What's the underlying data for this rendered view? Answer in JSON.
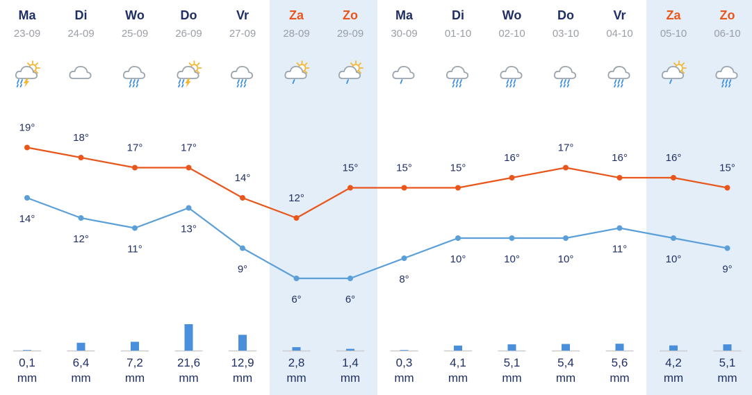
{
  "forecast": {
    "days": [
      {
        "day": "Ma",
        "date": "23-09",
        "weekend": false,
        "icon": "sun-cloud-thunderstorm-icon",
        "high": "19°",
        "low": "14°",
        "precip": "0,1",
        "unit": "mm"
      },
      {
        "day": "Di",
        "date": "24-09",
        "weekend": false,
        "icon": "partly-cloudy-icon",
        "high": "18°",
        "low": "12°",
        "precip": "6,4",
        "unit": "mm"
      },
      {
        "day": "Wo",
        "date": "25-09",
        "weekend": false,
        "icon": "cloud-rain-icon",
        "high": "17°",
        "low": "11°",
        "precip": "7,2",
        "unit": "mm"
      },
      {
        "day": "Do",
        "date": "26-09",
        "weekend": false,
        "icon": "sun-cloud-thunderstorm-icon",
        "high": "17°",
        "low": "13°",
        "precip": "21,6",
        "unit": "mm"
      },
      {
        "day": "Vr",
        "date": "27-09",
        "weekend": false,
        "icon": "cloud-rain-icon",
        "high": "14°",
        "low": "9°",
        "precip": "12,9",
        "unit": "mm"
      },
      {
        "day": "Za",
        "date": "28-09",
        "weekend": true,
        "icon": "sun-cloud-drizzle-icon",
        "high": "12°",
        "low": "6°",
        "precip": "2,8",
        "unit": "mm"
      },
      {
        "day": "Zo",
        "date": "29-09",
        "weekend": true,
        "icon": "sun-cloud-drizzle-icon",
        "high": "15°",
        "low": "6°",
        "precip": "1,4",
        "unit": "mm"
      },
      {
        "day": "Ma",
        "date": "30-09",
        "weekend": false,
        "icon": "cloud-drizzle-icon",
        "high": "15°",
        "low": "8°",
        "precip": "0,3",
        "unit": "mm"
      },
      {
        "day": "Di",
        "date": "01-10",
        "weekend": false,
        "icon": "cloud-rain-icon",
        "high": "15°",
        "low": "10°",
        "precip": "4,1",
        "unit": "mm"
      },
      {
        "day": "Wo",
        "date": "02-10",
        "weekend": false,
        "icon": "cloud-rain-icon",
        "high": "16°",
        "low": "10°",
        "precip": "5,1",
        "unit": "mm"
      },
      {
        "day": "Do",
        "date": "03-10",
        "weekend": false,
        "icon": "cloud-rain-icon",
        "high": "17°",
        "low": "10°",
        "precip": "5,4",
        "unit": "mm"
      },
      {
        "day": "Vr",
        "date": "04-10",
        "weekend": false,
        "icon": "cloud-rain-icon",
        "high": "16°",
        "low": "11°",
        "precip": "5,6",
        "unit": "mm"
      },
      {
        "day": "Za",
        "date": "05-10",
        "weekend": true,
        "icon": "sun-cloud-drizzle-icon",
        "high": "16°",
        "low": "10°",
        "precip": "4,2",
        "unit": "mm"
      },
      {
        "day": "Zo",
        "date": "06-10",
        "weekend": true,
        "icon": "cloud-rain-icon",
        "high": "15°",
        "low": "9°",
        "precip": "5,1",
        "unit": "mm"
      }
    ]
  },
  "colors": {
    "high_line": "#e8561b",
    "low_line": "#5b9fd8",
    "precip_bar": "#4a8fdb",
    "weekend_band": "#e3eef9",
    "text": "#1f2f63",
    "weekend_day": "#e8561b",
    "sun": "#f5b731",
    "bolt": "#f5b731",
    "rain": "#3d8fe0"
  },
  "chart_data": {
    "type": "line",
    "categories": [
      "Ma 23-09",
      "Di 24-09",
      "Wo 25-09",
      "Do 26-09",
      "Vr 27-09",
      "Za 28-09",
      "Zo 29-09",
      "Ma 30-09",
      "Di 01-10",
      "Wo 02-10",
      "Do 03-10",
      "Vr 04-10",
      "Za 05-10",
      "Zo 06-10"
    ],
    "series": [
      {
        "values": [
          19,
          18,
          17,
          17,
          14,
          12,
          15,
          15,
          15,
          16,
          17,
          16,
          16,
          15
        ]
      },
      {
        "values": [
          14,
          12,
          11,
          13,
          9,
          6,
          6,
          8,
          10,
          10,
          10,
          11,
          10,
          9
        ]
      }
    ],
    "precipitation_mm": [
      0.1,
      6.4,
      7.2,
      21.6,
      12.9,
      2.8,
      1.4,
      0.3,
      4.1,
      5.1,
      5.4,
      5.6,
      4.2,
      5.1
    ]
  }
}
